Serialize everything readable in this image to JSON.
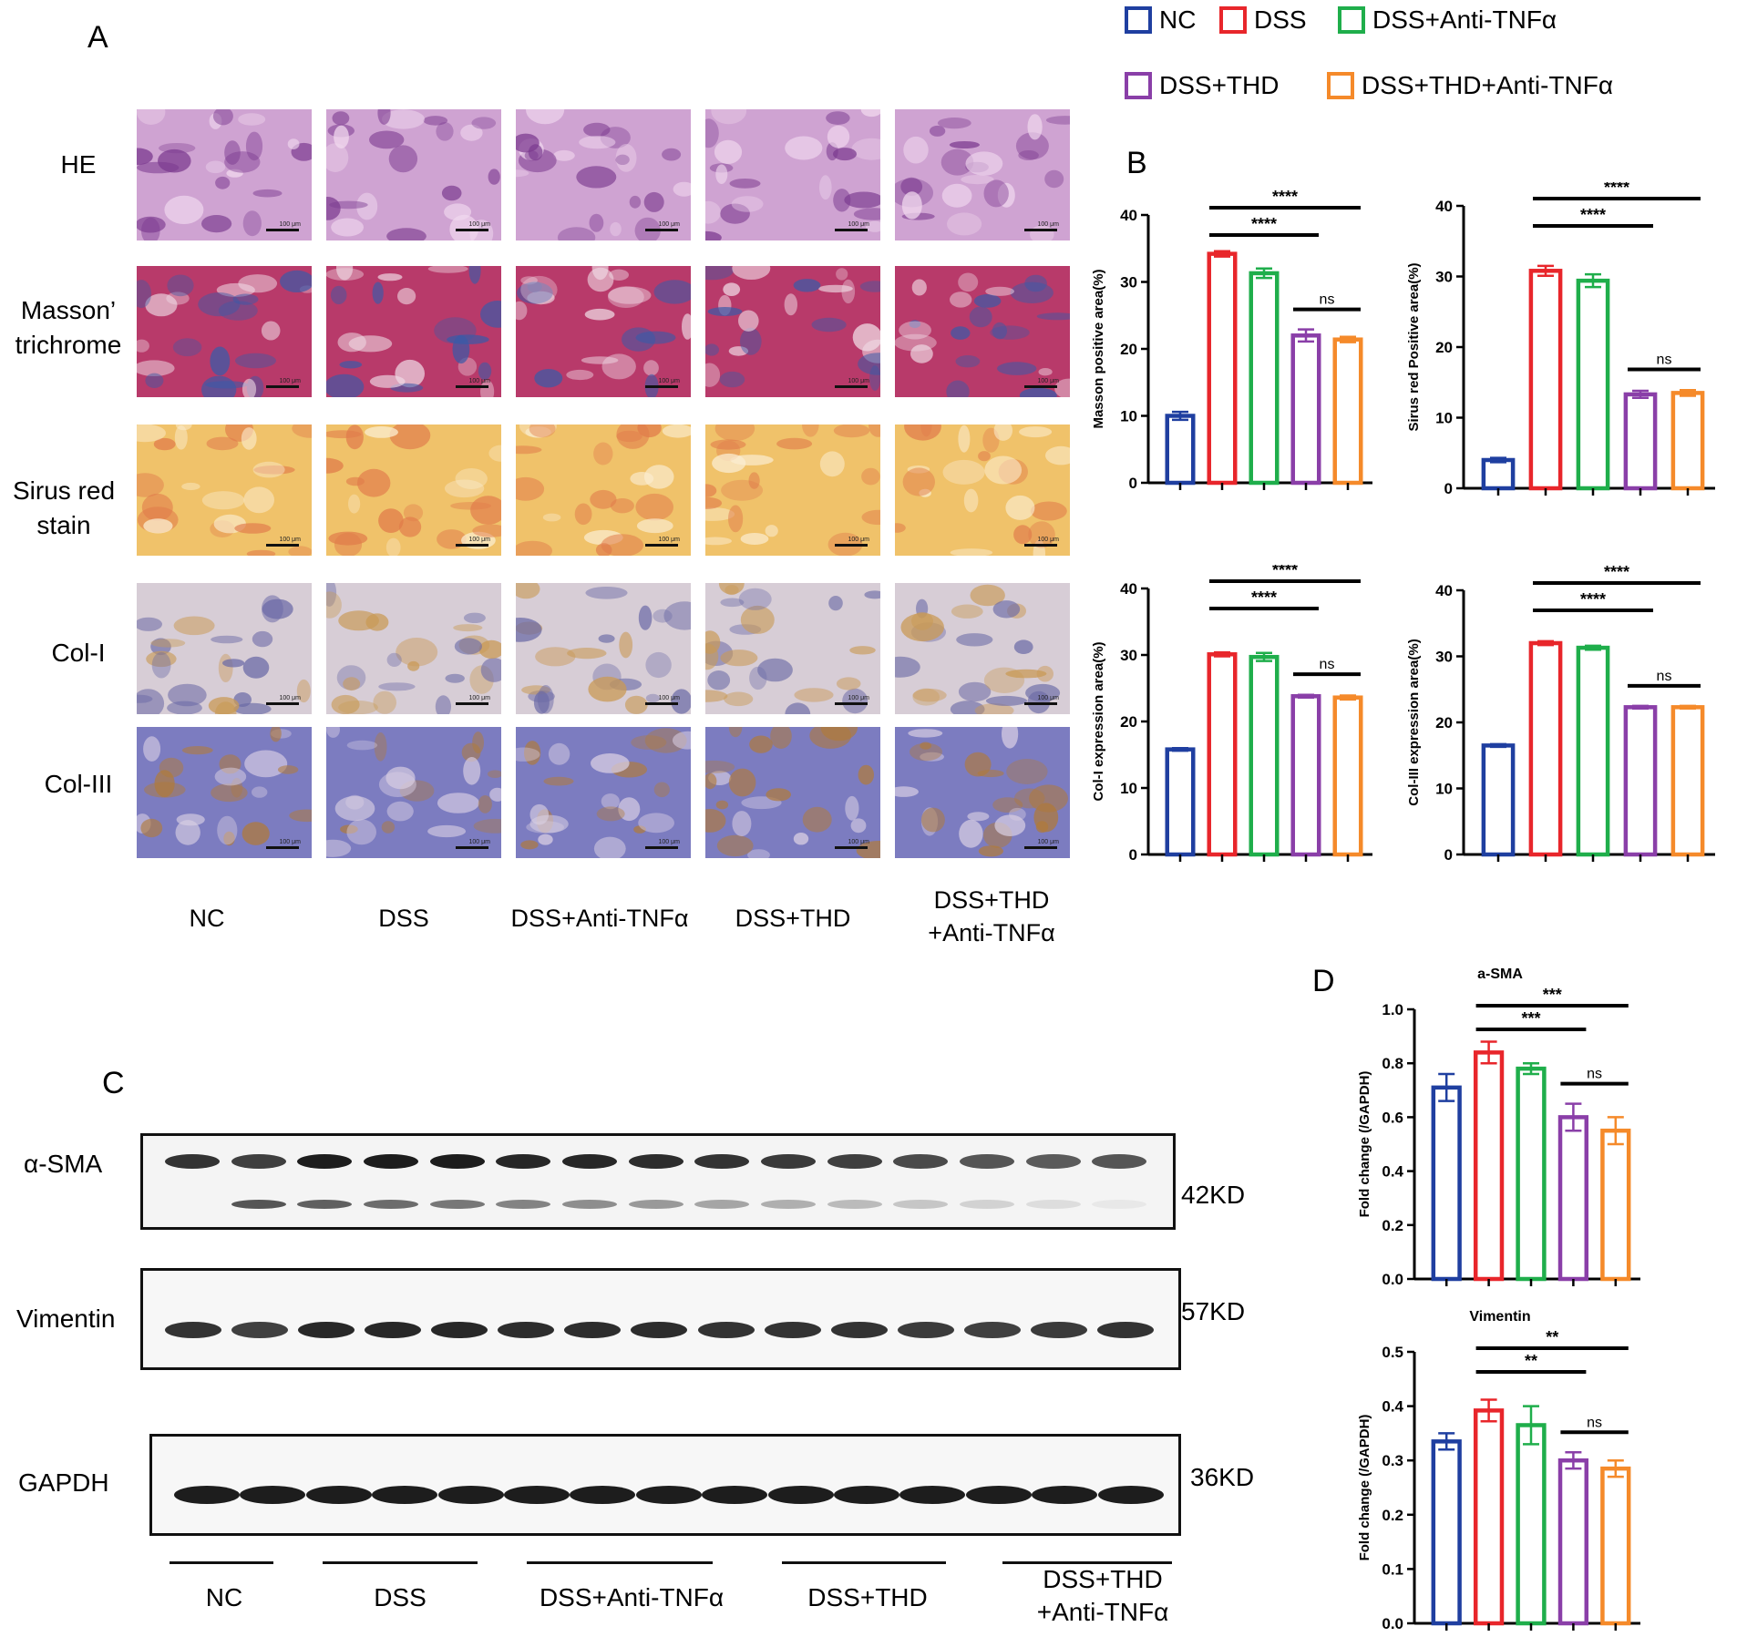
{
  "panels": {
    "A": "A",
    "B": "B",
    "C": "C",
    "D": "D"
  },
  "legend": [
    {
      "label": "NC",
      "color": "#1f3fa0"
    },
    {
      "label": "DSS",
      "color": "#e8262b"
    },
    {
      "label": "DSS+Anti-TNFα",
      "color": "#1fae4b"
    },
    {
      "label": "DSS+THD",
      "color": "#8a3fa8"
    },
    {
      "label": "DSS+THD+Anti-TNFα",
      "color": "#f58a2a"
    }
  ],
  "histology": {
    "row_labels": [
      "HE",
      "Masson’ trichrome",
      "Sirus red stain",
      "Col-I",
      "Col-III"
    ],
    "row_labels_split": [
      [
        "HE"
      ],
      [
        "Masson’",
        "trichrome"
      ],
      [
        "Sirus red",
        "stain"
      ],
      [
        "Col-I"
      ],
      [
        "Col-III"
      ]
    ],
    "group_labels": [
      [
        "NC"
      ],
      [
        "DSS"
      ],
      [
        "DSS+Anti-TNFα"
      ],
      [
        "DSS+THD"
      ],
      [
        "DSS+THD",
        "+Anti-TNFα"
      ]
    ],
    "scale_text": "100 μm"
  },
  "western": {
    "proteins": [
      {
        "name": "α-SMA",
        "kd": "42KD"
      },
      {
        "name": "Vimentin",
        "kd": "57KD"
      },
      {
        "name": "GAPDH",
        "kd": "36KD"
      }
    ],
    "group_labels": [
      [
        "NC"
      ],
      [
        "DSS"
      ],
      [
        "DSS+Anti-TNFα"
      ],
      [
        "DSS+THD"
      ],
      [
        "DSS+THD",
        "+Anti-TNFα"
      ]
    ]
  },
  "chart_data": [
    {
      "type": "bar",
      "panel": "B",
      "ylabel": "Masson positive area(%)",
      "ylim": [
        0,
        40
      ],
      "yticks": [
        0,
        10,
        20,
        30,
        40
      ],
      "values": [
        10.0,
        34.2,
        31.3,
        22.0,
        21.4
      ],
      "errors": [
        0.6,
        0.4,
        0.7,
        0.9,
        0.4
      ],
      "significance": [
        {
          "from": 1,
          "to": 4,
          "label": "****"
        },
        {
          "from": 1,
          "to": 3,
          "label": "****"
        },
        {
          "from": 3,
          "to": 4,
          "label": "ns"
        }
      ]
    },
    {
      "type": "bar",
      "panel": "B",
      "ylabel": "Sirus red Positive area(%)",
      "ylim": [
        0,
        40
      ],
      "yticks": [
        0,
        10,
        20,
        30,
        40
      ],
      "values": [
        4.0,
        30.8,
        29.4,
        13.3,
        13.5
      ],
      "errors": [
        0.3,
        0.7,
        0.9,
        0.5,
        0.4
      ],
      "significance": [
        {
          "from": 1,
          "to": 4,
          "label": "****"
        },
        {
          "from": 1,
          "to": 3,
          "label": "****"
        },
        {
          "from": 3,
          "to": 4,
          "label": "ns"
        }
      ]
    },
    {
      "type": "bar",
      "panel": "B",
      "ylabel": "Col-I expression area(%)",
      "ylim": [
        0,
        40
      ],
      "yticks": [
        0,
        10,
        20,
        30,
        40
      ],
      "values": [
        15.8,
        30.1,
        29.7,
        23.8,
        23.6
      ],
      "errors": [
        0.2,
        0.3,
        0.6,
        0.2,
        0.3
      ],
      "significance": [
        {
          "from": 1,
          "to": 4,
          "label": "****"
        },
        {
          "from": 1,
          "to": 3,
          "label": "****"
        },
        {
          "from": 3,
          "to": 4,
          "label": "ns"
        }
      ]
    },
    {
      "type": "bar",
      "panel": "B",
      "ylabel": "Col-III expression area(%)",
      "ylim": [
        0,
        40
      ],
      "yticks": [
        0,
        10,
        20,
        30,
        40
      ],
      "values": [
        16.5,
        32.0,
        31.3,
        22.3,
        22.3
      ],
      "errors": [
        0.2,
        0.3,
        0.3,
        0.2,
        0.2
      ],
      "significance": [
        {
          "from": 1,
          "to": 4,
          "label": "****"
        },
        {
          "from": 1,
          "to": 3,
          "label": "****"
        },
        {
          "from": 3,
          "to": 4,
          "label": "ns"
        }
      ]
    },
    {
      "type": "bar",
      "panel": "D",
      "title": "a-SMA",
      "ylabel": "Fold change (/GAPDH)",
      "ylim": [
        0,
        1.0
      ],
      "yticks": [
        0.0,
        0.2,
        0.4,
        0.6,
        0.8,
        1.0
      ],
      "values": [
        0.71,
        0.84,
        0.78,
        0.6,
        0.55
      ],
      "errors": [
        0.05,
        0.04,
        0.02,
        0.05,
        0.05
      ],
      "significance": [
        {
          "from": 1,
          "to": 4,
          "label": "***"
        },
        {
          "from": 1,
          "to": 3,
          "label": "***"
        },
        {
          "from": 3,
          "to": 4,
          "label": "ns"
        }
      ]
    },
    {
      "type": "bar",
      "panel": "D",
      "title": "Vimentin",
      "ylabel": "Fold change (/GAPDH)",
      "ylim": [
        0,
        0.5
      ],
      "yticks": [
        0.0,
        0.1,
        0.2,
        0.3,
        0.4,
        0.5
      ],
      "values": [
        0.335,
        0.392,
        0.365,
        0.3,
        0.285
      ],
      "errors": [
        0.015,
        0.02,
        0.035,
        0.015,
        0.015
      ],
      "significance": [
        {
          "from": 1,
          "to": 4,
          "label": "**"
        },
        {
          "from": 1,
          "to": 3,
          "label": "**"
        },
        {
          "from": 3,
          "to": 4,
          "label": "ns"
        }
      ]
    }
  ]
}
